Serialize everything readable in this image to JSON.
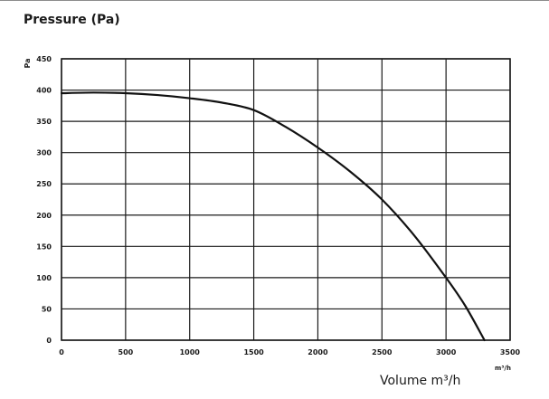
{
  "chart_data": {
    "type": "line",
    "title": "Pressure (Pa)",
    "xlabel": "Volume m³/h",
    "ylabel": "Pa",
    "x_unit": "m³/h",
    "xlim": [
      0,
      3500
    ],
    "ylim": [
      0,
      450
    ],
    "x_ticks": [
      "0",
      "500",
      "1000",
      "1500",
      "2000",
      "2500",
      "3000",
      "3500"
    ],
    "y_ticks": [
      "0",
      "50",
      "100",
      "150",
      "200",
      "250",
      "300",
      "350",
      "400",
      "450"
    ],
    "grid": true,
    "series": [
      {
        "x": [
          0,
          250,
          500,
          750,
          1000,
          1250,
          1500,
          1750,
          2000,
          2250,
          2500,
          2750,
          3000,
          3150,
          3300
        ],
        "y": [
          395,
          396,
          395,
          392,
          387,
          380,
          368,
          341,
          308,
          270,
          225,
          168,
          100,
          55,
          0
        ]
      }
    ]
  }
}
